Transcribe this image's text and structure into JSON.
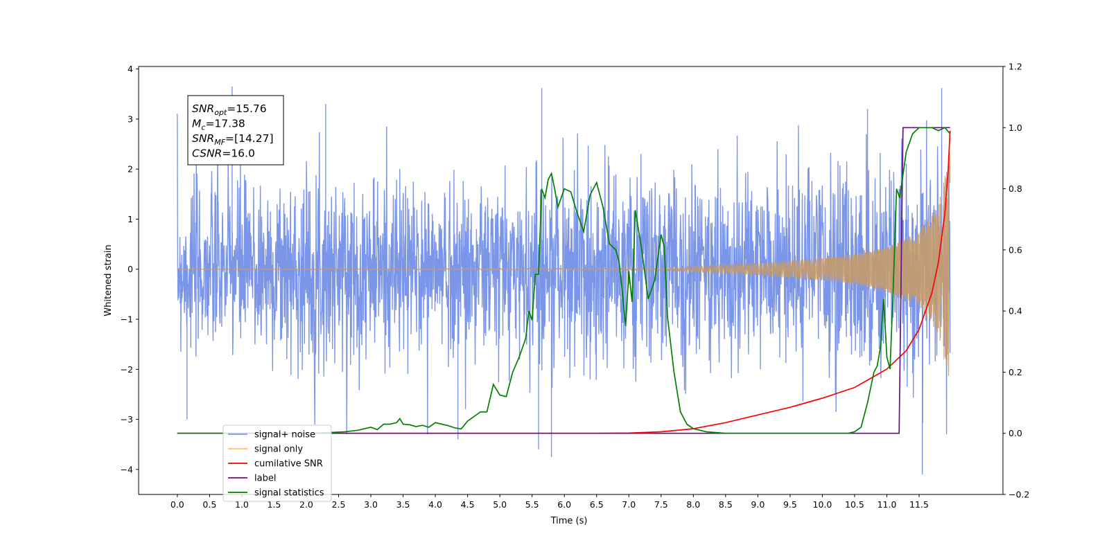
{
  "chart_data": {
    "type": "line",
    "xlabel": "Time (s)",
    "ylabel": "Whitened strain",
    "xlim": [
      -0.6,
      12.8
    ],
    "ylim": [
      -4.5,
      4.05
    ],
    "y2lim": [
      -0.2,
      1.2
    ],
    "grid": false,
    "legend_position": "lower-left",
    "x_ticks": [
      "0.0",
      "0.5",
      "1.0",
      "1.5",
      "2.0",
      "2.5",
      "3.0",
      "3.5",
      "4.0",
      "4.5",
      "5.0",
      "5.5",
      "6.0",
      "6.5",
      "7.0",
      "7.5",
      "8.0",
      "8.5",
      "9.0",
      "9.5",
      "10.0",
      "10.5",
      "11.0",
      "11.5"
    ],
    "y_ticks": [
      "4",
      "3",
      "2",
      "1",
      "0",
      "−1",
      "−2",
      "−3",
      "−4"
    ],
    "y2_ticks": [
      "1.2",
      "1.0",
      "0.8",
      "0.6",
      "0.4",
      "0.2",
      "0.0",
      "−0.2"
    ],
    "annotation": {
      "lines": [
        {
          "base": "SNR",
          "sub": "opt",
          "value": "=15.76"
        },
        {
          "base": "M",
          "sub": "c",
          "value": "=17.38"
        },
        {
          "base": "SNR",
          "sub": "MF",
          "value": "=[14.27]"
        },
        {
          "base": "CSNR",
          "sub": "",
          "value": "=16.0"
        }
      ]
    },
    "legend": [
      {
        "label": "signal+ noise",
        "color": "#7b96e8"
      },
      {
        "label": "signal only",
        "color": "#ffbf66"
      },
      {
        "label": "cumilative SNR",
        "color": "#ff0000"
      },
      {
        "label": "label",
        "color": "#6a0d83"
      },
      {
        "label": "signal statistics",
        "color": "#008000"
      }
    ],
    "series": [
      {
        "name": "signal+ noise",
        "axis": "left",
        "color": "#7b96e8",
        "kind": "noise-band",
        "x_range": [
          0.0,
          11.98
        ],
        "envelope": [
          [
            0.0,
            1.9
          ],
          [
            0.5,
            2.1
          ],
          [
            1.0,
            2.2
          ],
          [
            2.0,
            2.1
          ],
          [
            3.0,
            2.2
          ],
          [
            4.0,
            2.0
          ],
          [
            5.0,
            2.2
          ],
          [
            6.0,
            2.3
          ],
          [
            7.0,
            2.2
          ],
          [
            8.0,
            2.2
          ],
          [
            9.0,
            2.2
          ],
          [
            10.0,
            2.3
          ],
          [
            11.0,
            2.4
          ],
          [
            11.5,
            2.5
          ],
          [
            11.98,
            2.5
          ]
        ],
        "peaks": [
          [
            0.85,
            3.65
          ],
          [
            2.3,
            3.3
          ],
          [
            5.65,
            3.62
          ],
          [
            10.7,
            3.2
          ],
          [
            11.85,
            3.62
          ],
          [
            11.55,
            -4.1
          ],
          [
            5.8,
            -3.75
          ],
          [
            5.6,
            -3.6
          ],
          [
            4.35,
            -3.4
          ],
          [
            0.15,
            -3.0
          ]
        ]
      },
      {
        "name": "signal only",
        "axis": "left",
        "color": "#c49a6c",
        "kind": "chirp",
        "amplitude": [
          [
            0.0,
            0.0
          ],
          [
            7.5,
            0.02
          ],
          [
            8.0,
            0.05
          ],
          [
            9.0,
            0.12
          ],
          [
            10.0,
            0.22
          ],
          [
            10.5,
            0.3
          ],
          [
            11.0,
            0.45
          ],
          [
            11.5,
            0.75
          ],
          [
            11.8,
            1.3
          ],
          [
            11.95,
            2.2
          ],
          [
            11.98,
            2.4
          ]
        ]
      },
      {
        "name": "cumilative SNR",
        "axis": "right",
        "color": "#ff0000",
        "x": [
          0.0,
          6.5,
          7.0,
          7.5,
          8.0,
          8.5,
          9.0,
          9.5,
          10.0,
          10.5,
          11.0,
          11.3,
          11.5,
          11.7,
          11.8,
          11.9,
          11.95,
          11.98
        ],
        "values": [
          0.0,
          0.0,
          0.001,
          0.005,
          0.015,
          0.035,
          0.06,
          0.085,
          0.115,
          0.15,
          0.21,
          0.27,
          0.34,
          0.46,
          0.56,
          0.72,
          0.86,
          0.99
        ]
      },
      {
        "name": "label",
        "axis": "right",
        "color": "#6a0d83",
        "x": [
          0.0,
          11.19,
          11.25,
          11.98
        ],
        "values": [
          0.0,
          0.0,
          1.0,
          1.0
        ]
      },
      {
        "name": "signal statistics",
        "axis": "right",
        "color": "#008000",
        "x": [
          0.0,
          0.5,
          1.0,
          1.5,
          2.0,
          2.3,
          2.6,
          2.8,
          3.0,
          3.1,
          3.2,
          3.3,
          3.4,
          3.45,
          3.5,
          3.6,
          3.7,
          3.8,
          3.9,
          4.0,
          4.1,
          4.2,
          4.3,
          4.4,
          4.5,
          4.6,
          4.7,
          4.8,
          4.9,
          5.0,
          5.1,
          5.2,
          5.3,
          5.4,
          5.45,
          5.5,
          5.55,
          5.6,
          5.65,
          5.7,
          5.75,
          5.8,
          5.85,
          5.9,
          6.0,
          6.1,
          6.2,
          6.3,
          6.4,
          6.5,
          6.6,
          6.7,
          6.8,
          6.85,
          6.9,
          6.95,
          7.0,
          7.05,
          7.1,
          7.2,
          7.3,
          7.4,
          7.5,
          7.55,
          7.6,
          7.7,
          7.8,
          7.9,
          8.0,
          8.2,
          8.5,
          9.0,
          9.5,
          10.0,
          10.4,
          10.5,
          10.6,
          10.7,
          10.8,
          10.85,
          10.9,
          10.95,
          11.0,
          11.05,
          11.1,
          11.15,
          11.2,
          11.3,
          11.4,
          11.5,
          11.6,
          11.7,
          11.8,
          11.9,
          11.98
        ],
        "values": [
          0.0,
          0.0,
          0.0,
          0.0,
          0.0,
          0.002,
          0.005,
          0.01,
          0.02,
          0.012,
          0.03,
          0.03,
          0.035,
          0.048,
          0.03,
          0.028,
          0.022,
          0.026,
          0.02,
          0.035,
          0.03,
          0.025,
          0.018,
          0.014,
          0.04,
          0.055,
          0.07,
          0.07,
          0.16,
          0.125,
          0.12,
          0.2,
          0.25,
          0.31,
          0.4,
          0.37,
          0.52,
          0.52,
          0.8,
          0.77,
          0.83,
          0.85,
          0.8,
          0.74,
          0.8,
          0.79,
          0.72,
          0.66,
          0.78,
          0.82,
          0.74,
          0.62,
          0.6,
          0.56,
          0.46,
          0.35,
          0.53,
          0.43,
          0.73,
          0.6,
          0.44,
          0.5,
          0.65,
          0.61,
          0.38,
          0.2,
          0.07,
          0.03,
          0.015,
          0.005,
          0.0,
          0.0,
          0.0,
          0.0,
          0.0,
          0.005,
          0.02,
          0.1,
          0.2,
          0.22,
          0.28,
          0.44,
          0.25,
          0.21,
          0.48,
          0.8,
          0.77,
          0.92,
          0.98,
          1.0,
          1.0,
          1.0,
          0.99,
          1.0,
          0.98
        ]
      }
    ]
  }
}
